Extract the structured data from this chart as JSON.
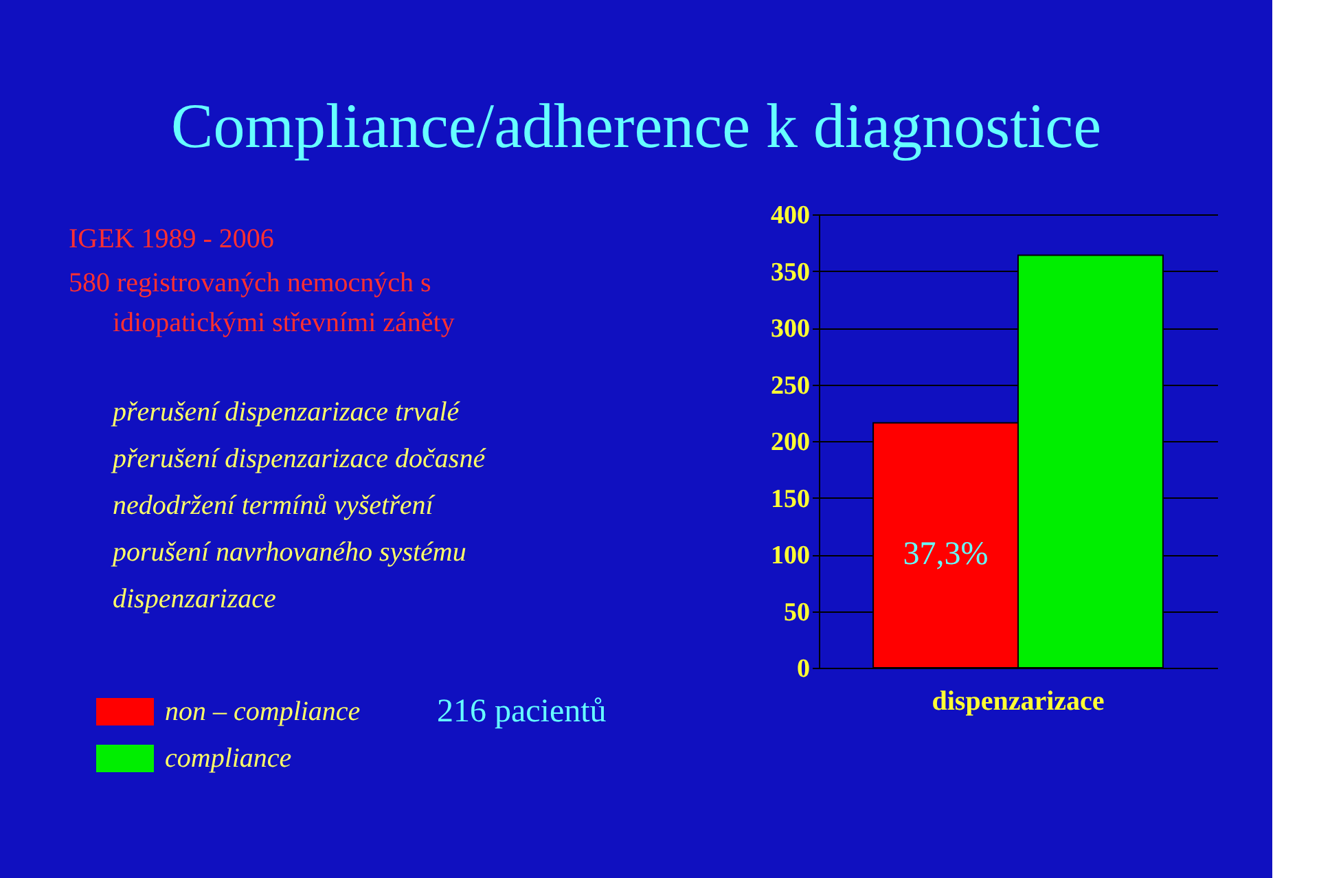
{
  "chart_data": {
    "type": "bar",
    "title": "Compliance/adherence k diagnostice",
    "categories": [
      "dispenzarizace"
    ],
    "series": [
      {
        "name": "non – compliance",
        "color": "#ff0000",
        "values": [
          216
        ]
      },
      {
        "name": "compliance",
        "color": "#00ee00",
        "values": [
          364
        ]
      }
    ],
    "ylim": [
      0,
      400
    ],
    "yticks": [
      0,
      50,
      100,
      150,
      200,
      250,
      300,
      350,
      400
    ],
    "grid": "y",
    "legend": "left",
    "annotations": [
      "IGEK 1989 - 2006",
      "580 registrovaných nemocných s idiopatickými střevními záněty",
      "přerušení dispenzarizace trvalé",
      "přerušení dispenzarizace dočasné",
      "nedodržení termínů vyšetření",
      "porušení navrhovaného systému dispenzarizace",
      "216 pacientů",
      {
        "text": "37,3%",
        "x": "dispenzarizace",
        "y": 100
      }
    ]
  }
}
